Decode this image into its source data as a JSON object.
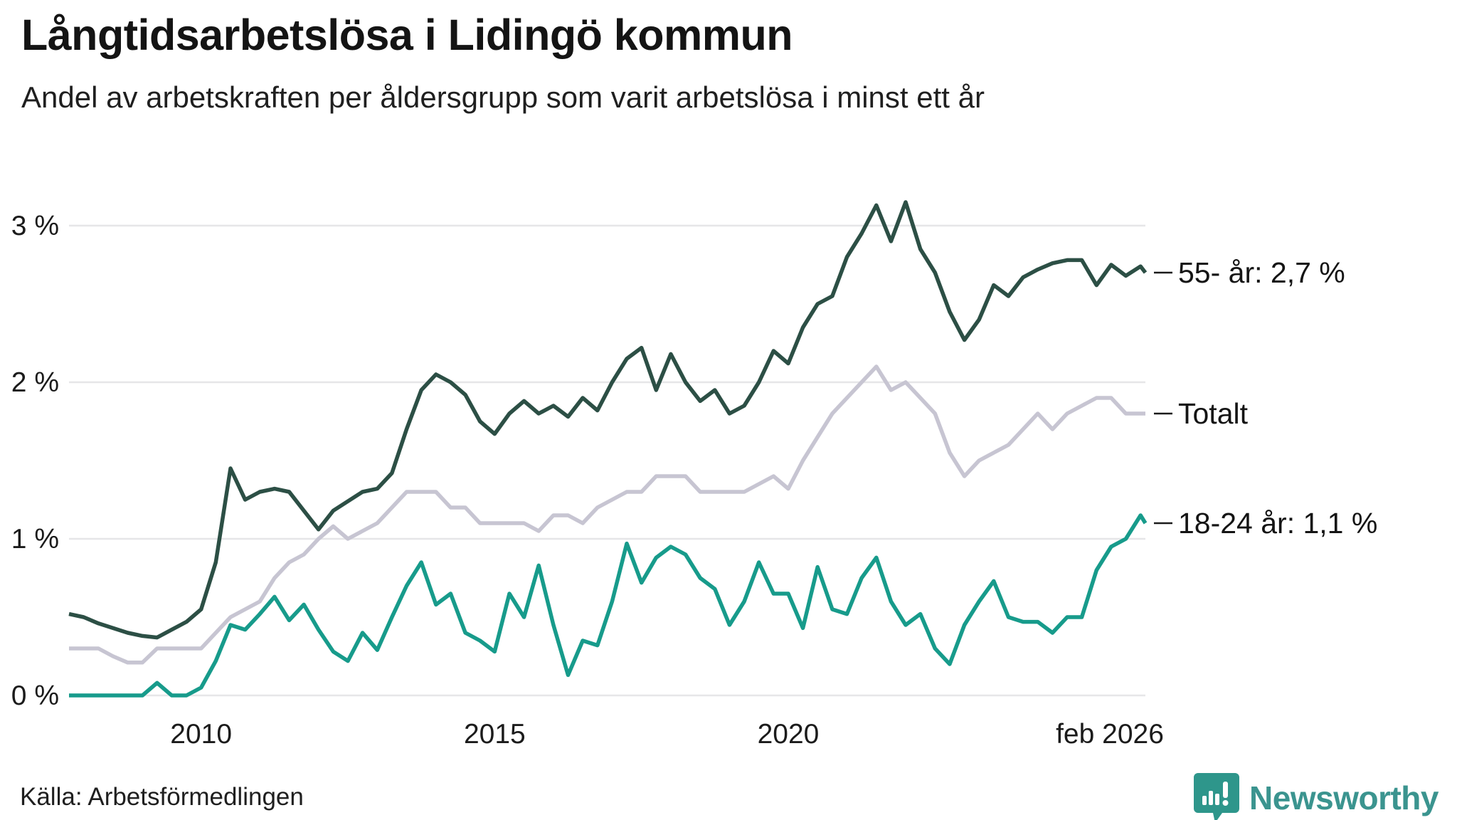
{
  "page": {
    "source": "Källa: Arbetsförmedlingen",
    "brand": {
      "name": "Newsworthy",
      "color": "#3b948f",
      "icon": "newsworthy-speech-bubble-bar-chart-icon"
    }
  },
  "chart_data": {
    "type": "line",
    "title": "Långtidsarbetslösa i Lidingö kommun",
    "subtitle": "Andel av arbetskraften per åldersgrupp som varit arbetslösa i minst ett år",
    "xlabel": "",
    "ylabel": "",
    "grid": "horizontal",
    "legend_position": "right-end-labels",
    "xlim_years": [
      2007.75,
      2026.083
    ],
    "ylim": [
      0,
      3.2
    ],
    "y_ticks": [
      {
        "v": 0,
        "label": "0 %"
      },
      {
        "v": 1,
        "label": "1 %"
      },
      {
        "v": 2,
        "label": "2 %"
      },
      {
        "v": 3,
        "label": "3 %"
      }
    ],
    "x_ticks": [
      {
        "t": 2010,
        "label": "2010"
      },
      {
        "t": 2015,
        "label": "2015"
      },
      {
        "t": 2020,
        "label": "2020"
      },
      {
        "t": 2026.083,
        "label": "feb 2026"
      }
    ],
    "colors": {
      "grid": "#e6e6e8",
      "axis_text": "#1b1b1b",
      "label_dash": "#1b1b1b"
    },
    "series": [
      {
        "name": "Totalt",
        "end_label": "Totalt",
        "last_value": 1.8,
        "color": "#c7c5d2",
        "points": [
          [
            2007.75,
            0.3
          ],
          [
            2008.0,
            0.3
          ],
          [
            2008.25,
            0.3
          ],
          [
            2008.5,
            0.25
          ],
          [
            2008.75,
            0.21
          ],
          [
            2009.0,
            0.21
          ],
          [
            2009.25,
            0.3
          ],
          [
            2009.5,
            0.3
          ],
          [
            2009.75,
            0.3
          ],
          [
            2010.0,
            0.3
          ],
          [
            2010.25,
            0.4
          ],
          [
            2010.5,
            0.5
          ],
          [
            2010.75,
            0.55
          ],
          [
            2011.0,
            0.6
          ],
          [
            2011.25,
            0.75
          ],
          [
            2011.5,
            0.85
          ],
          [
            2011.75,
            0.9
          ],
          [
            2012.0,
            1.0
          ],
          [
            2012.25,
            1.08
          ],
          [
            2012.5,
            1.0
          ],
          [
            2012.75,
            1.05
          ],
          [
            2013.0,
            1.1
          ],
          [
            2013.25,
            1.2
          ],
          [
            2013.5,
            1.3
          ],
          [
            2013.75,
            1.3
          ],
          [
            2014.0,
            1.3
          ],
          [
            2014.25,
            1.2
          ],
          [
            2014.5,
            1.2
          ],
          [
            2014.75,
            1.1
          ],
          [
            2015.0,
            1.1
          ],
          [
            2015.25,
            1.1
          ],
          [
            2015.5,
            1.1
          ],
          [
            2015.75,
            1.05
          ],
          [
            2016.0,
            1.15
          ],
          [
            2016.25,
            1.15
          ],
          [
            2016.5,
            1.1
          ],
          [
            2016.75,
            1.2
          ],
          [
            2017.0,
            1.25
          ],
          [
            2017.25,
            1.3
          ],
          [
            2017.5,
            1.3
          ],
          [
            2017.75,
            1.4
          ],
          [
            2018.0,
            1.4
          ],
          [
            2018.25,
            1.4
          ],
          [
            2018.5,
            1.3
          ],
          [
            2018.75,
            1.3
          ],
          [
            2019.0,
            1.3
          ],
          [
            2019.25,
            1.3
          ],
          [
            2019.5,
            1.35
          ],
          [
            2019.75,
            1.4
          ],
          [
            2020.0,
            1.32
          ],
          [
            2020.25,
            1.5
          ],
          [
            2020.5,
            1.65
          ],
          [
            2020.75,
            1.8
          ],
          [
            2021.0,
            1.9
          ],
          [
            2021.25,
            2.0
          ],
          [
            2021.5,
            2.1
          ],
          [
            2021.75,
            1.95
          ],
          [
            2022.0,
            2.0
          ],
          [
            2022.25,
            1.9
          ],
          [
            2022.5,
            1.8
          ],
          [
            2022.75,
            1.55
          ],
          [
            2023.0,
            1.4
          ],
          [
            2023.25,
            1.5
          ],
          [
            2023.5,
            1.55
          ],
          [
            2023.75,
            1.6
          ],
          [
            2024.0,
            1.7
          ],
          [
            2024.25,
            1.8
          ],
          [
            2024.5,
            1.7
          ],
          [
            2024.75,
            1.8
          ],
          [
            2025.0,
            1.85
          ],
          [
            2025.25,
            1.9
          ],
          [
            2025.5,
            1.9
          ],
          [
            2025.75,
            1.8
          ],
          [
            2026.0,
            1.8
          ],
          [
            2026.083,
            1.8
          ]
        ]
      },
      {
        "name": "18-24 år",
        "end_label": "18-24 år: 1,1 %",
        "last_value": 1.1,
        "color": "#179b8b",
        "points": [
          [
            2007.75,
            0.0
          ],
          [
            2008.0,
            0.0
          ],
          [
            2008.25,
            0.0
          ],
          [
            2008.5,
            0.0
          ],
          [
            2008.75,
            0.0
          ],
          [
            2009.0,
            0.0
          ],
          [
            2009.25,
            0.08
          ],
          [
            2009.5,
            0.0
          ],
          [
            2009.75,
            0.0
          ],
          [
            2010.0,
            0.05
          ],
          [
            2010.25,
            0.22
          ],
          [
            2010.5,
            0.45
          ],
          [
            2010.75,
            0.42
          ],
          [
            2011.0,
            0.52
          ],
          [
            2011.25,
            0.63
          ],
          [
            2011.5,
            0.48
          ],
          [
            2011.75,
            0.58
          ],
          [
            2012.0,
            0.42
          ],
          [
            2012.25,
            0.28
          ],
          [
            2012.5,
            0.22
          ],
          [
            2012.75,
            0.4
          ],
          [
            2013.0,
            0.29
          ],
          [
            2013.25,
            0.5
          ],
          [
            2013.5,
            0.7
          ],
          [
            2013.75,
            0.85
          ],
          [
            2014.0,
            0.58
          ],
          [
            2014.25,
            0.65
          ],
          [
            2014.5,
            0.4
          ],
          [
            2014.75,
            0.35
          ],
          [
            2015.0,
            0.28
          ],
          [
            2015.25,
            0.65
          ],
          [
            2015.5,
            0.5
          ],
          [
            2015.75,
            0.83
          ],
          [
            2016.0,
            0.45
          ],
          [
            2016.25,
            0.13
          ],
          [
            2016.5,
            0.35
          ],
          [
            2016.75,
            0.32
          ],
          [
            2017.0,
            0.6
          ],
          [
            2017.25,
            0.97
          ],
          [
            2017.5,
            0.72
          ],
          [
            2017.75,
            0.88
          ],
          [
            2018.0,
            0.95
          ],
          [
            2018.25,
            0.9
          ],
          [
            2018.5,
            0.75
          ],
          [
            2018.75,
            0.68
          ],
          [
            2019.0,
            0.45
          ],
          [
            2019.25,
            0.6
          ],
          [
            2019.5,
            0.85
          ],
          [
            2019.75,
            0.65
          ],
          [
            2020.0,
            0.65
          ],
          [
            2020.25,
            0.43
          ],
          [
            2020.5,
            0.82
          ],
          [
            2020.75,
            0.55
          ],
          [
            2021.0,
            0.52
          ],
          [
            2021.25,
            0.75
          ],
          [
            2021.5,
            0.88
          ],
          [
            2021.75,
            0.6
          ],
          [
            2022.0,
            0.45
          ],
          [
            2022.25,
            0.52
          ],
          [
            2022.5,
            0.3
          ],
          [
            2022.75,
            0.2
          ],
          [
            2023.0,
            0.45
          ],
          [
            2023.25,
            0.6
          ],
          [
            2023.5,
            0.73
          ],
          [
            2023.75,
            0.5
          ],
          [
            2024.0,
            0.47
          ],
          [
            2024.25,
            0.47
          ],
          [
            2024.5,
            0.4
          ],
          [
            2024.75,
            0.5
          ],
          [
            2025.0,
            0.5
          ],
          [
            2025.25,
            0.8
          ],
          [
            2025.5,
            0.95
          ],
          [
            2025.75,
            1.0
          ],
          [
            2026.0,
            1.15
          ],
          [
            2026.083,
            1.1
          ]
        ]
      },
      {
        "name": "55- år",
        "end_label": "55- år: 2,7 %",
        "last_value": 2.7,
        "color": "#2c4f45",
        "points": [
          [
            2007.75,
            0.52
          ],
          [
            2008.0,
            0.5
          ],
          [
            2008.25,
            0.46
          ],
          [
            2008.5,
            0.43
          ],
          [
            2008.75,
            0.4
          ],
          [
            2009.0,
            0.38
          ],
          [
            2009.25,
            0.37
          ],
          [
            2009.5,
            0.42
          ],
          [
            2009.75,
            0.47
          ],
          [
            2010.0,
            0.55
          ],
          [
            2010.25,
            0.85
          ],
          [
            2010.5,
            1.45
          ],
          [
            2010.75,
            1.25
          ],
          [
            2011.0,
            1.3
          ],
          [
            2011.25,
            1.32
          ],
          [
            2011.5,
            1.3
          ],
          [
            2011.75,
            1.18
          ],
          [
            2012.0,
            1.06
          ],
          [
            2012.25,
            1.18
          ],
          [
            2012.5,
            1.24
          ],
          [
            2012.75,
            1.3
          ],
          [
            2013.0,
            1.32
          ],
          [
            2013.25,
            1.42
          ],
          [
            2013.5,
            1.7
          ],
          [
            2013.75,
            1.95
          ],
          [
            2014.0,
            2.05
          ],
          [
            2014.25,
            2.0
          ],
          [
            2014.5,
            1.92
          ],
          [
            2014.75,
            1.75
          ],
          [
            2015.0,
            1.67
          ],
          [
            2015.25,
            1.8
          ],
          [
            2015.5,
            1.88
          ],
          [
            2015.75,
            1.8
          ],
          [
            2016.0,
            1.85
          ],
          [
            2016.25,
            1.78
          ],
          [
            2016.5,
            1.9
          ],
          [
            2016.75,
            1.82
          ],
          [
            2017.0,
            2.0
          ],
          [
            2017.25,
            2.15
          ],
          [
            2017.5,
            2.22
          ],
          [
            2017.75,
            1.95
          ],
          [
            2018.0,
            2.18
          ],
          [
            2018.25,
            2.0
          ],
          [
            2018.5,
            1.88
          ],
          [
            2018.75,
            1.95
          ],
          [
            2019.0,
            1.8
          ],
          [
            2019.25,
            1.85
          ],
          [
            2019.5,
            2.0
          ],
          [
            2019.75,
            2.2
          ],
          [
            2020.0,
            2.12
          ],
          [
            2020.25,
            2.35
          ],
          [
            2020.5,
            2.5
          ],
          [
            2020.75,
            2.55
          ],
          [
            2021.0,
            2.8
          ],
          [
            2021.25,
            2.95
          ],
          [
            2021.5,
            3.13
          ],
          [
            2021.75,
            2.9
          ],
          [
            2022.0,
            3.15
          ],
          [
            2022.25,
            2.85
          ],
          [
            2022.5,
            2.7
          ],
          [
            2022.75,
            2.45
          ],
          [
            2023.0,
            2.27
          ],
          [
            2023.25,
            2.4
          ],
          [
            2023.5,
            2.62
          ],
          [
            2023.75,
            2.55
          ],
          [
            2024.0,
            2.67
          ],
          [
            2024.25,
            2.72
          ],
          [
            2024.5,
            2.76
          ],
          [
            2024.75,
            2.78
          ],
          [
            2025.0,
            2.78
          ],
          [
            2025.25,
            2.62
          ],
          [
            2025.5,
            2.75
          ],
          [
            2025.75,
            2.68
          ],
          [
            2026.0,
            2.74
          ],
          [
            2026.083,
            2.7
          ]
        ]
      }
    ]
  }
}
